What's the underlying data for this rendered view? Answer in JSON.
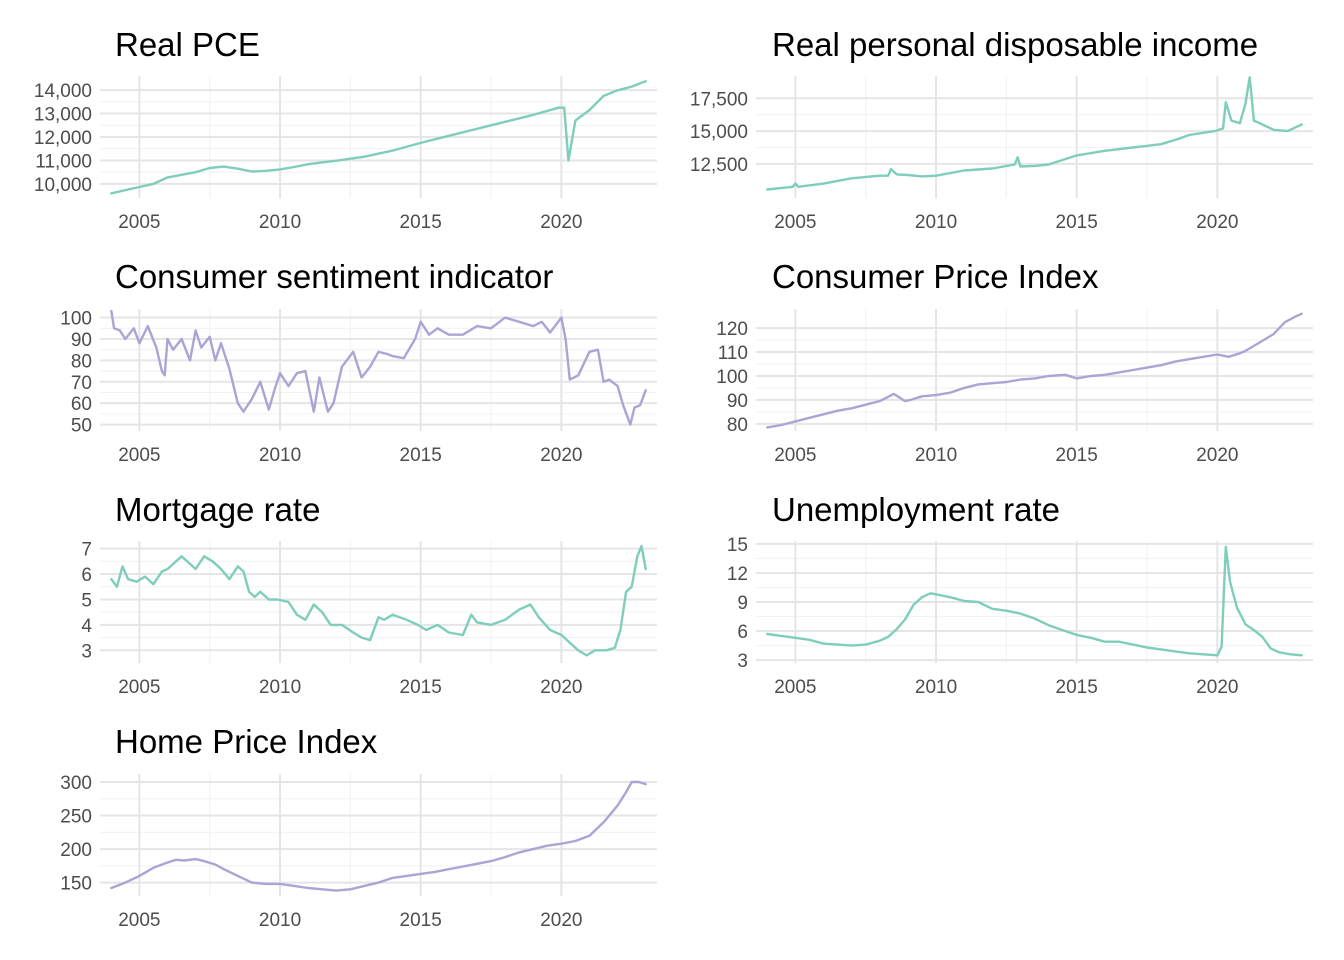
{
  "palette": {
    "green": "#7fcdbb",
    "purple": "#a9a5d4",
    "grid_major": "#e5e5e5",
    "grid_minor": "#f2f2f2",
    "tick_text": "#4d4d4d"
  },
  "chart_data": [
    {
      "type": "line",
      "title": "Real PCE",
      "xlabel": "",
      "ylabel": "",
      "x_ticks": [
        "2005",
        "2010",
        "2015",
        "2020"
      ],
      "y_ticks": [
        10000,
        11000,
        12000,
        13000,
        14000
      ],
      "y_tick_labels": [
        "10,000",
        "11,000",
        "12,000",
        "13,000",
        "14,000"
      ],
      "xlim": [
        2003.6,
        2023.4
      ],
      "ylim": [
        9400,
        14600
      ],
      "grid": true,
      "color": "#7fcdbb",
      "series": [
        {
          "x": [
            2004.0,
            2005.0,
            2005.5,
            2006.0,
            2007.0,
            2007.5,
            2008.0,
            2008.5,
            2009.0,
            2009.5,
            2010.0,
            2010.5,
            2011.0,
            2012.0,
            2013.0,
            2014.0,
            2015.0,
            2016.0,
            2017.0,
            2018.0,
            2019.0,
            2019.9,
            2020.1,
            2020.25,
            2020.5,
            2021.0,
            2021.5,
            2022.0,
            2022.5,
            2023.0
          ],
          "y": [
            9600,
            9870,
            10000,
            10280,
            10500,
            10680,
            10740,
            10650,
            10530,
            10560,
            10620,
            10720,
            10840,
            10990,
            11160,
            11420,
            11750,
            12050,
            12350,
            12650,
            12940,
            13250,
            13250,
            11000,
            12700,
            13150,
            13750,
            13990,
            14150,
            14380
          ]
        }
      ]
    },
    {
      "type": "line",
      "title": "Real personal disposable income",
      "xlabel": "",
      "ylabel": "",
      "x_ticks": [
        "2005",
        "2010",
        "2015",
        "2020"
      ],
      "y_ticks": [
        12500,
        15000,
        17500
      ],
      "y_tick_labels": [
        "12,500",
        "15,000",
        "17,500"
      ],
      "xlim": [
        2003.6,
        2023.4
      ],
      "ylim": [
        9900,
        19200
      ],
      "grid": true,
      "color": "#7fcdbb",
      "series": [
        {
          "x": [
            2004.0,
            2004.9,
            2005.0,
            2005.1,
            2006.0,
            2007.0,
            2008.0,
            2008.3,
            2008.4,
            2008.6,
            2009.0,
            2009.5,
            2010.0,
            2011.0,
            2012.0,
            2012.8,
            2012.9,
            2013.0,
            2013.5,
            2014.0,
            2015.0,
            2016.0,
            2017.0,
            2018.0,
            2018.6,
            2019.0,
            2019.9,
            2020.2,
            2020.3,
            2020.5,
            2020.8,
            2021.0,
            2021.15,
            2021.3,
            2021.5,
            2022.0,
            2022.5,
            2023.0
          ],
          "y": [
            10550,
            10750,
            11000,
            10750,
            11000,
            11400,
            11600,
            11600,
            12100,
            11700,
            11650,
            11550,
            11600,
            12000,
            12150,
            12450,
            13000,
            12300,
            12350,
            12450,
            13150,
            13500,
            13750,
            14000,
            14400,
            14700,
            15000,
            15200,
            17200,
            15800,
            15600,
            17100,
            19100,
            15800,
            15600,
            15100,
            15000,
            15500
          ]
        }
      ]
    },
    {
      "type": "line",
      "title": "Consumer sentiment indicator",
      "xlabel": "",
      "ylabel": "",
      "x_ticks": [
        "2005",
        "2010",
        "2015",
        "2020"
      ],
      "y_ticks": [
        50,
        60,
        70,
        80,
        90,
        100
      ],
      "y_tick_labels": [
        "50",
        "60",
        "70",
        "80",
        "90",
        "100"
      ],
      "xlim": [
        2003.6,
        2023.4
      ],
      "ylim": [
        47,
        104
      ],
      "grid": true,
      "color": "#a9a5d4",
      "series": [
        {
          "x": [
            2004.0,
            2004.1,
            2004.3,
            2004.5,
            2004.8,
            2005.0,
            2005.3,
            2005.6,
            2005.8,
            2005.9,
            2006.0,
            2006.2,
            2006.5,
            2006.8,
            2007.0,
            2007.2,
            2007.5,
            2007.7,
            2007.9,
            2008.2,
            2008.5,
            2008.7,
            2009.0,
            2009.3,
            2009.6,
            2009.8,
            2010.0,
            2010.3,
            2010.6,
            2010.9,
            2011.2,
            2011.4,
            2011.7,
            2011.9,
            2012.2,
            2012.6,
            2012.9,
            2013.2,
            2013.5,
            2013.8,
            2014.0,
            2014.4,
            2014.8,
            2015.0,
            2015.3,
            2015.6,
            2016.0,
            2016.5,
            2017.0,
            2017.5,
            2018.0,
            2018.5,
            2019.0,
            2019.3,
            2019.6,
            2020.0,
            2020.15,
            2020.3,
            2020.6,
            2021.0,
            2021.3,
            2021.5,
            2021.7,
            2022.0,
            2022.2,
            2022.45,
            2022.6,
            2022.8,
            2023.0
          ],
          "y": [
            103,
            95,
            94,
            90,
            95,
            88,
            96,
            86,
            75,
            73,
            90,
            85,
            90,
            80,
            94,
            86,
            91,
            80,
            88,
            76,
            60,
            56,
            62,
            70,
            57,
            66,
            74,
            68,
            74,
            75,
            56,
            72,
            56,
            60,
            77,
            84,
            72,
            77,
            84,
            83,
            82,
            81,
            90,
            98,
            92,
            95,
            92,
            92,
            96,
            95,
            100,
            98,
            96,
            98,
            93,
            100,
            90,
            71,
            73,
            84,
            85,
            70,
            71,
            68,
            59,
            50,
            58,
            59,
            66
          ]
        }
      ]
    },
    {
      "type": "line",
      "title": "Consumer Price Index",
      "xlabel": "",
      "ylabel": "",
      "x_ticks": [
        "2005",
        "2010",
        "2015",
        "2020"
      ],
      "y_ticks": [
        80,
        90,
        100,
        110,
        120
      ],
      "y_tick_labels": [
        "80",
        "90",
        "100",
        "110",
        "120"
      ],
      "xlim": [
        2003.6,
        2023.4
      ],
      "ylim": [
        77,
        128
      ],
      "grid": true,
      "color": "#a9a5d4",
      "series": [
        {
          "x": [
            2004.0,
            2004.5,
            2005.0,
            2005.5,
            2006.0,
            2006.5,
            2007.0,
            2007.5,
            2008.0,
            2008.5,
            2008.9,
            2009.1,
            2009.5,
            2010.0,
            2010.5,
            2011.0,
            2011.5,
            2012.0,
            2012.5,
            2013.0,
            2013.5,
            2014.0,
            2014.6,
            2015.0,
            2015.5,
            2016.0,
            2016.5,
            2017.0,
            2017.5,
            2018.0,
            2018.5,
            2019.0,
            2019.5,
            2020.0,
            2020.4,
            2020.8,
            2021.0,
            2021.5,
            2022.0,
            2022.4,
            2022.8,
            2023.0
          ],
          "y": [
            78.5,
            79.5,
            81,
            82.5,
            84,
            85.5,
            86.5,
            88,
            89.5,
            92.5,
            89.5,
            90,
            91.5,
            92,
            93,
            95,
            96.5,
            97,
            97.5,
            98.5,
            99,
            100,
            100.5,
            99,
            100,
            100.5,
            101.5,
            102.5,
            103.5,
            104.5,
            106,
            107,
            108,
            109,
            108,
            109.5,
            110.5,
            114,
            117.5,
            122.5,
            125,
            126
          ]
        }
      ]
    },
    {
      "type": "line",
      "title": "Mortgage rate",
      "xlabel": "",
      "ylabel": "",
      "x_ticks": [
        "2005",
        "2010",
        "2015",
        "2020"
      ],
      "y_ticks": [
        3,
        4,
        5,
        6,
        7
      ],
      "y_tick_labels": [
        "3",
        "4",
        "5",
        "6",
        "7"
      ],
      "xlim": [
        2003.6,
        2023.4
      ],
      "ylim": [
        2.5,
        7.3
      ],
      "grid": true,
      "color": "#7fcdbb",
      "series": [
        {
          "x": [
            2004.0,
            2004.2,
            2004.4,
            2004.6,
            2004.9,
            2005.2,
            2005.5,
            2005.8,
            2006.0,
            2006.5,
            2006.8,
            2007.0,
            2007.3,
            2007.6,
            2007.9,
            2008.2,
            2008.5,
            2008.7,
            2008.9,
            2009.1,
            2009.3,
            2009.6,
            2009.9,
            2010.3,
            2010.6,
            2010.9,
            2011.2,
            2011.5,
            2011.8,
            2012.2,
            2012.6,
            2012.9,
            2013.2,
            2013.5,
            2013.7,
            2014.0,
            2014.5,
            2014.9,
            2015.2,
            2015.6,
            2016.0,
            2016.5,
            2016.8,
            2017.0,
            2017.5,
            2018.0,
            2018.5,
            2018.9,
            2019.2,
            2019.6,
            2020.0,
            2020.3,
            2020.6,
            2020.9,
            2021.2,
            2021.6,
            2021.9,
            2022.1,
            2022.3,
            2022.5,
            2022.7,
            2022.85,
            2023.0
          ],
          "y": [
            5.8,
            5.5,
            6.3,
            5.8,
            5.7,
            5.9,
            5.6,
            6.1,
            6.2,
            6.7,
            6.4,
            6.2,
            6.7,
            6.5,
            6.2,
            5.8,
            6.3,
            6.1,
            5.3,
            5.1,
            5.3,
            5.0,
            5.0,
            4.9,
            4.4,
            4.2,
            4.8,
            4.5,
            4.0,
            4.0,
            3.7,
            3.5,
            3.4,
            4.3,
            4.2,
            4.4,
            4.2,
            4.0,
            3.8,
            4.0,
            3.7,
            3.6,
            4.4,
            4.1,
            4.0,
            4.2,
            4.6,
            4.8,
            4.3,
            3.8,
            3.6,
            3.3,
            3.0,
            2.8,
            3.0,
            3.0,
            3.1,
            3.8,
            5.3,
            5.5,
            6.7,
            7.1,
            6.2
          ]
        }
      ]
    },
    {
      "type": "line",
      "title": "Unemployment rate",
      "xlabel": "",
      "ylabel": "",
      "x_ticks": [
        "2005",
        "2010",
        "2015",
        "2020"
      ],
      "y_ticks": [
        3,
        6,
        9,
        12,
        15
      ],
      "y_tick_labels": [
        "3",
        "6",
        "9",
        "12",
        "15"
      ],
      "xlim": [
        2003.6,
        2023.4
      ],
      "ylim": [
        2.7,
        15.3
      ],
      "grid": true,
      "color": "#7fcdbb",
      "series": [
        {
          "x": [
            2004.0,
            2004.5,
            2005.0,
            2005.5,
            2006.0,
            2006.5,
            2007.0,
            2007.5,
            2008.0,
            2008.3,
            2008.6,
            2008.9,
            2009.2,
            2009.5,
            2009.8,
            2010.0,
            2010.5,
            2011.0,
            2011.5,
            2012.0,
            2012.5,
            2013.0,
            2013.5,
            2014.0,
            2014.5,
            2015.0,
            2015.5,
            2016.0,
            2016.5,
            2017.0,
            2017.5,
            2018.0,
            2018.5,
            2019.0,
            2019.5,
            2020.0,
            2020.15,
            2020.3,
            2020.45,
            2020.7,
            2021.0,
            2021.3,
            2021.6,
            2021.9,
            2022.2,
            2022.6,
            2023.0
          ],
          "y": [
            5.7,
            5.5,
            5.3,
            5.1,
            4.7,
            4.6,
            4.5,
            4.6,
            5.0,
            5.4,
            6.2,
            7.2,
            8.7,
            9.5,
            9.9,
            9.8,
            9.5,
            9.1,
            9.0,
            8.3,
            8.1,
            7.8,
            7.3,
            6.6,
            6.1,
            5.6,
            5.3,
            4.9,
            4.9,
            4.6,
            4.3,
            4.1,
            3.9,
            3.7,
            3.6,
            3.5,
            4.4,
            14.7,
            11.1,
            8.4,
            6.7,
            6.1,
            5.4,
            4.2,
            3.8,
            3.6,
            3.5
          ]
        }
      ]
    },
    {
      "type": "line",
      "title": "Home Price Index",
      "xlabel": "",
      "ylabel": "",
      "x_ticks": [
        "2005",
        "2010",
        "2015",
        "2020"
      ],
      "y_ticks": [
        150,
        200,
        250,
        300
      ],
      "y_tick_labels": [
        "150",
        "200",
        "250",
        "300"
      ],
      "xlim": [
        2003.6,
        2023.4
      ],
      "ylim": [
        130,
        312
      ],
      "grid": true,
      "color": "#a9a5d4",
      "series": [
        {
          "x": [
            2004.0,
            2004.5,
            2005.0,
            2005.5,
            2006.0,
            2006.3,
            2006.6,
            2007.0,
            2007.3,
            2007.7,
            2008.0,
            2008.5,
            2009.0,
            2009.5,
            2010.0,
            2010.5,
            2011.0,
            2011.5,
            2012.0,
            2012.5,
            2013.0,
            2013.5,
            2014.0,
            2014.5,
            2015.0,
            2015.5,
            2016.0,
            2016.5,
            2017.0,
            2017.5,
            2018.0,
            2018.5,
            2019.0,
            2019.5,
            2020.0,
            2020.5,
            2021.0,
            2021.5,
            2022.0,
            2022.3,
            2022.5,
            2022.75,
            2023.0
          ],
          "y": [
            142,
            150,
            160,
            172,
            180,
            184,
            183,
            185,
            182,
            177,
            170,
            160,
            150,
            148,
            148,
            145,
            142,
            140,
            138,
            140,
            145,
            150,
            157,
            160,
            163,
            166,
            170,
            174,
            178,
            182,
            188,
            195,
            200,
            205,
            208,
            212,
            220,
            240,
            265,
            285,
            300,
            300,
            297
          ]
        }
      ]
    }
  ]
}
